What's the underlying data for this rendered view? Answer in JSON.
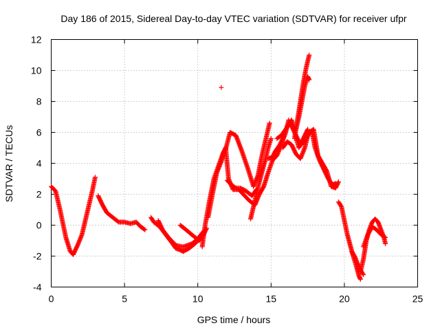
{
  "chart_data": {
    "type": "scatter",
    "title": "Day 186 of 2015, Sidereal Day-to-day VTEC variation (SDTVAR) for receiver ufpr",
    "xlabel": "GPS time / hours",
    "ylabel": "SDTVAR / TECUs",
    "xlim": [
      0,
      25
    ],
    "ylim": [
      -4,
      12
    ],
    "xticks": [
      "0",
      "5",
      "10",
      "15",
      "20",
      "25"
    ],
    "yticks": [
      "-4",
      "-2",
      "0",
      "2",
      "4",
      "6",
      "8",
      "10",
      "12"
    ],
    "grid": true,
    "marker": "plus",
    "color": "#ff0000",
    "series": [
      {
        "name": "seg1",
        "x": [
          0.0,
          0.3,
          0.6,
          1.0,
          1.3,
          1.5
        ],
        "y": [
          2.5,
          2.2,
          1.0,
          -0.8,
          -1.7,
          -1.9
        ]
      },
      {
        "name": "seg2",
        "x": [
          1.5,
          1.8,
          2.1,
          2.5,
          2.8,
          3.0
        ],
        "y": [
          -1.9,
          -1.3,
          -0.6,
          1.0,
          2.2,
          3.1
        ]
      },
      {
        "name": "seg3",
        "x": [
          3.2,
          3.5,
          3.8,
          4.2,
          4.6,
          5.0,
          5.4,
          5.8,
          6.1,
          6.4
        ],
        "y": [
          1.9,
          1.3,
          0.8,
          0.5,
          0.2,
          0.2,
          0.1,
          0.2,
          -0.1,
          -0.3
        ]
      },
      {
        "name": "seg4",
        "x": [
          6.8,
          7.0,
          7.4,
          7.8,
          8.2,
          8.5,
          8.8,
          9.0,
          9.4,
          9.8,
          10.2,
          10.4
        ],
        "y": [
          0.5,
          0.2,
          -0.1,
          -0.6,
          -1.1,
          -1.5,
          -1.6,
          -1.7,
          -1.5,
          -1.2,
          -0.8,
          -0.4
        ]
      },
      {
        "name": "seg5",
        "x": [
          7.3,
          7.6,
          8.0,
          8.5,
          9.0,
          9.6,
          10.0,
          10.3
        ],
        "y": [
          0.3,
          -0.3,
          -0.8,
          -1.3,
          -1.4,
          -1.2,
          -0.9,
          -0.5
        ]
      },
      {
        "name": "seg6",
        "x": [
          8.8,
          9.2,
          9.7,
          10.1,
          10.4,
          10.6
        ],
        "y": [
          0.0,
          -0.3,
          -0.7,
          -1.0,
          -0.6,
          -0.2
        ]
      },
      {
        "name": "seg7",
        "x": [
          10.3,
          10.5,
          10.8,
          11.1,
          11.4,
          11.7,
          11.9
        ],
        "y": [
          -1.4,
          0.0,
          1.6,
          3.0,
          3.8,
          4.6,
          5.0
        ]
      },
      {
        "name": "seg8",
        "x": [
          10.7,
          11.0,
          11.3,
          11.6,
          11.8
        ],
        "y": [
          0.5,
          2.0,
          3.4,
          4.1,
          4.8
        ]
      },
      {
        "name": "seg9",
        "x": [
          11.6
        ],
        "y": [
          8.9
        ]
      },
      {
        "name": "seg10",
        "x": [
          11.9,
          12.1,
          12.4,
          12.8,
          13.1,
          13.5,
          13.9,
          14.2
        ],
        "y": [
          5.0,
          3.0,
          2.3,
          2.3,
          2.0,
          1.6,
          1.3,
          2.0
        ]
      },
      {
        "name": "seg11",
        "x": [
          12.0,
          12.3,
          12.6,
          12.9,
          13.3,
          13.7,
          14.0
        ],
        "y": [
          2.9,
          2.6,
          2.4,
          2.4,
          2.2,
          1.9,
          2.3
        ]
      },
      {
        "name": "seg12",
        "x": [
          11.9,
          12.2,
          12.6,
          13.0,
          13.4,
          13.8,
          14.1,
          14.4,
          14.6,
          14.9
        ],
        "y": [
          4.9,
          6.0,
          5.8,
          4.8,
          3.7,
          2.5,
          3.2,
          4.6,
          5.4,
          6.6
        ]
      },
      {
        "name": "seg13",
        "x": [
          13.6,
          13.8,
          14.0,
          14.2,
          14.4,
          14.6,
          14.8,
          15.0
        ],
        "y": [
          0.4,
          1.2,
          2.0,
          2.8,
          3.5,
          4.2,
          5.0,
          5.6
        ]
      },
      {
        "name": "seg14",
        "x": [
          14.2,
          14.5,
          14.8,
          15.1,
          15.4,
          15.7,
          16.0,
          16.2
        ],
        "y": [
          2.0,
          2.5,
          3.4,
          4.2,
          4.5,
          5.2,
          6.0,
          6.8
        ]
      },
      {
        "name": "seg15",
        "x": [
          14.8,
          15.1,
          15.3,
          15.6,
          15.9,
          16.1,
          16.4,
          16.7,
          17.0,
          17.3,
          17.6,
          17.9,
          18.2,
          18.5,
          18.8,
          19.1,
          19.4,
          19.6
        ],
        "y": [
          4.3,
          4.4,
          4.8,
          5.2,
          5.8,
          6.4,
          6.8,
          5.8,
          5.2,
          5.4,
          6.0,
          6.2,
          4.5,
          4.0,
          3.5,
          2.5,
          2.4,
          2.8
        ]
      },
      {
        "name": "seg16",
        "x": [
          15.4,
          15.7,
          16.0,
          16.3,
          16.6,
          16.9,
          17.2,
          17.5
        ],
        "y": [
          5.6,
          5.8,
          6.2,
          6.6,
          6.0,
          5.0,
          5.6,
          6.2
        ]
      },
      {
        "name": "seg17",
        "x": [
          15.8,
          16.1,
          16.4,
          16.7,
          17.0,
          17.3,
          17.5,
          17.7
        ],
        "y": [
          5.0,
          5.4,
          5.2,
          4.6,
          4.3,
          5.0,
          5.8,
          6.0
        ]
      },
      {
        "name": "seg18",
        "x": [
          16.3,
          16.5,
          16.7,
          16.9,
          17.1,
          17.3,
          17.5,
          17.6
        ],
        "y": [
          6.7,
          6.3,
          6.2,
          7.0,
          8.0,
          9.0,
          9.6,
          9.4
        ]
      },
      {
        "name": "seg19",
        "x": [
          16.6,
          16.8,
          17.0,
          17.2,
          17.4,
          17.6
        ],
        "y": [
          5.6,
          6.8,
          8.0,
          9.2,
          10.2,
          11.0
        ]
      },
      {
        "name": "seg20",
        "x": [
          17.8,
          18.0,
          18.3,
          18.6,
          18.9,
          19.2,
          19.4
        ],
        "y": [
          6.0,
          5.0,
          4.2,
          3.6,
          3.0,
          2.6,
          2.7
        ]
      },
      {
        "name": "seg21",
        "x": [
          19.6,
          19.8,
          20.0,
          20.2,
          20.4,
          20.6,
          20.8,
          21.0,
          21.1
        ],
        "y": [
          1.5,
          1.2,
          0.3,
          -0.6,
          -1.3,
          -2.0,
          -2.6,
          -3.3,
          -3.5
        ]
      },
      {
        "name": "seg22",
        "x": [
          20.5,
          20.7,
          20.9,
          21.1,
          21.3
        ],
        "y": [
          -1.7,
          -2.0,
          -2.5,
          -2.9,
          -3.2
        ]
      },
      {
        "name": "seg23",
        "x": [
          21.1,
          21.3,
          21.5,
          21.7,
          21.9,
          22.1,
          22.3,
          22.5,
          22.7,
          22.8
        ],
        "y": [
          -3.0,
          -2.2,
          -1.0,
          -0.3,
          0.2,
          0.4,
          0.2,
          -0.3,
          -0.8,
          -1.2
        ]
      },
      {
        "name": "seg24",
        "x": [
          21.3,
          21.6,
          21.9,
          22.2,
          22.5,
          22.8
        ],
        "y": [
          -1.4,
          -0.6,
          -0.1,
          -0.3,
          -0.6,
          -0.8
        ]
      }
    ]
  }
}
